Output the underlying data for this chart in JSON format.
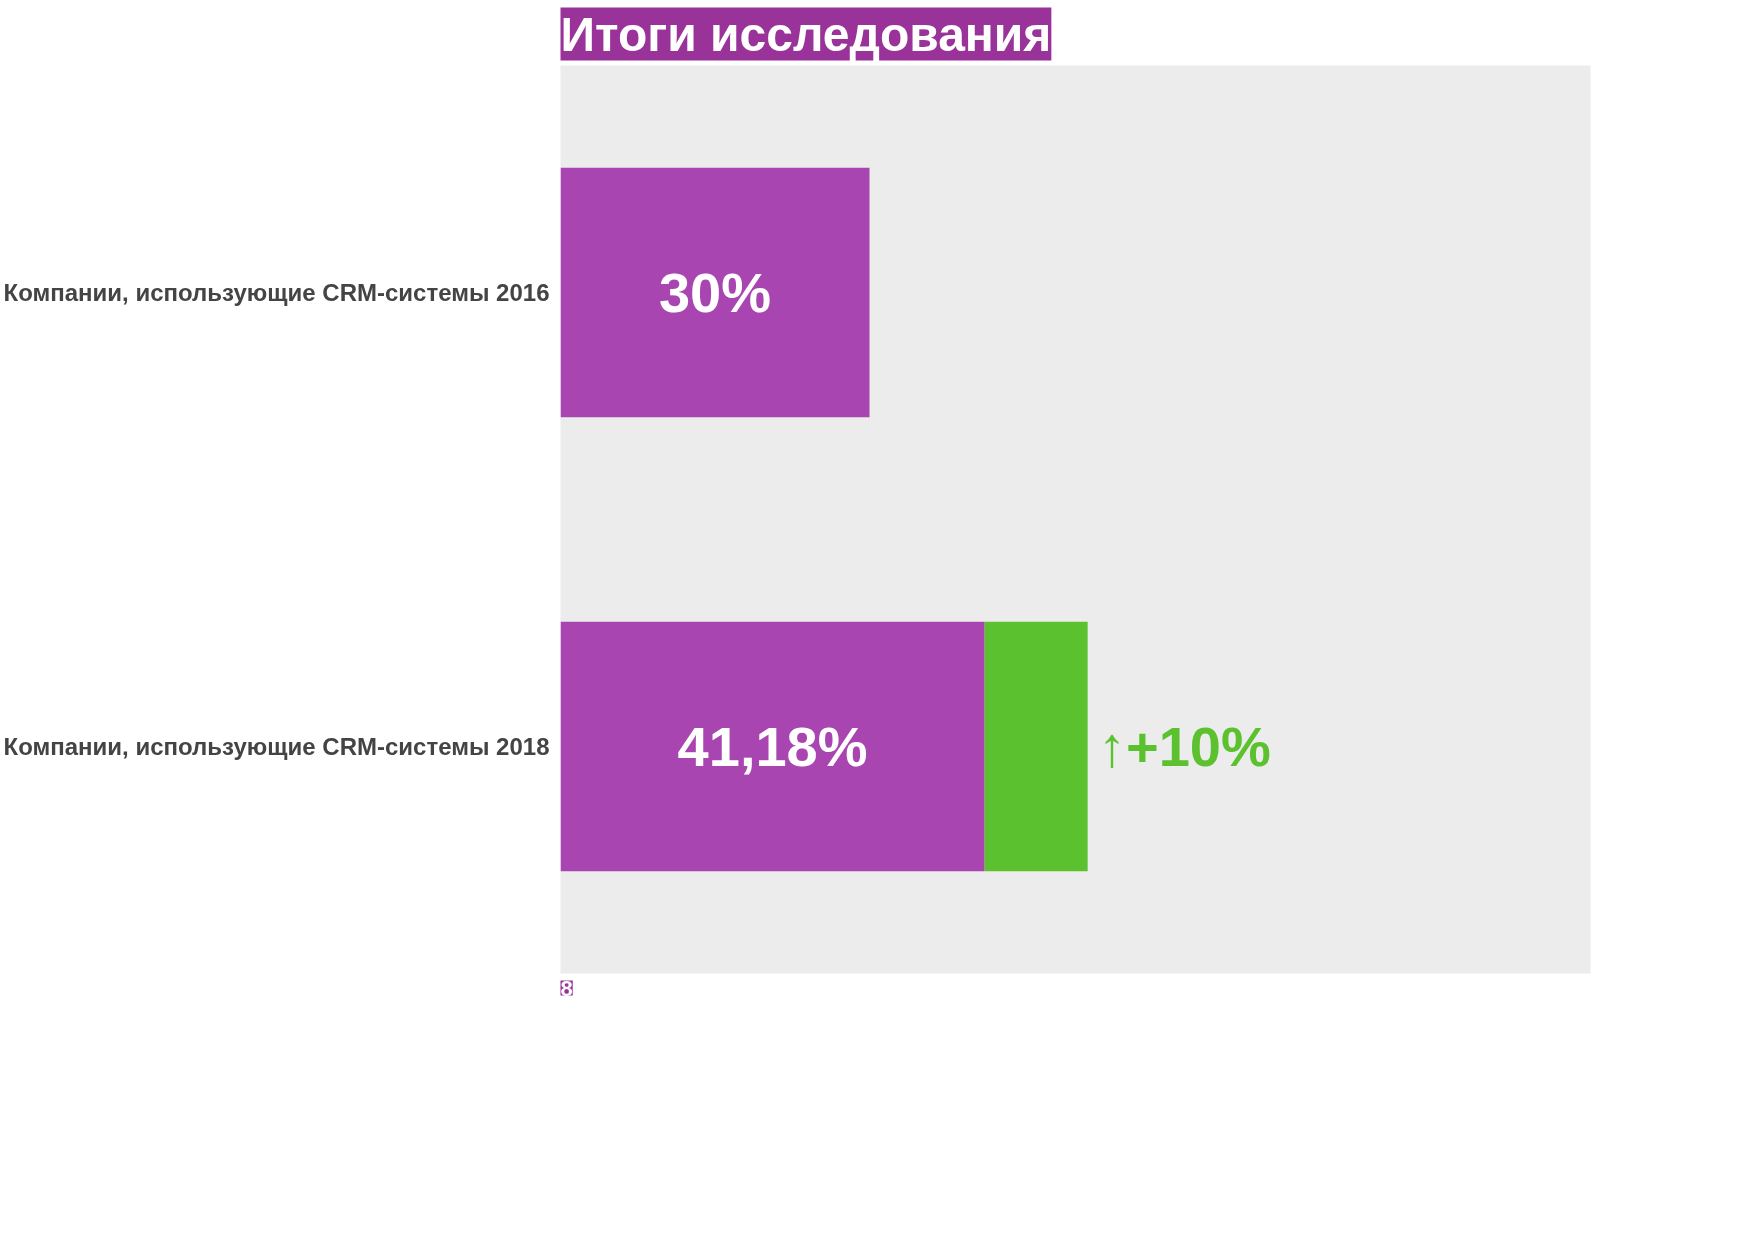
{
  "chart_data": {
    "type": "bar",
    "orientation": "horizontal",
    "stacked": true,
    "title": "Итоги исследования",
    "categories": [
      "Компании, использующие CRM-системы 2016",
      "Компании, использующие CRM-системы 2018"
    ],
    "series": [
      {
        "color": "#a945b0",
        "values": [
          30,
          41.18
        ],
        "value_labels": [
          "30%",
          "41,18%"
        ]
      },
      {
        "color": "#5cc12e",
        "values": [
          null,
          10
        ],
        "value_labels": [
          null,
          "↑+10%"
        ]
      }
    ],
    "xlim": [
      0,
      100
    ],
    "tick_labels": "y",
    "grid": false,
    "annotations": [
      "8"
    ]
  }
}
